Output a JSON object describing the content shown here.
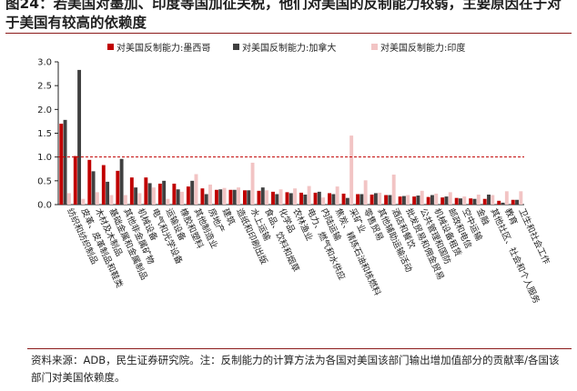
{
  "header": {
    "title": "图24：若美国对墨加、印度等国加征关税，他们对美国的反制能力较弱，主要原因在于对于美国有较高的依赖度"
  },
  "footer": {
    "source": "资料来源：ADB，民生证券研究院。注：反制能力的计算方法为各国对美国该部门输出增加值部分的贡献率/各国该部门对美国依赖度。"
  },
  "chart_data": {
    "type": "bar",
    "ylim": [
      0,
      3.0
    ],
    "yticks": [
      "0.0",
      "0.5",
      "1.0",
      "1.5",
      "2.0",
      "2.5",
      "3.0"
    ],
    "reference_line": {
      "y": 1.0,
      "color": "#c00000",
      "style": "dashed"
    },
    "grid": false,
    "legend_position": "top",
    "categories": [
      "纺织和纺织制品",
      "皮革、皮革制品和鞋类",
      "木材及木制品",
      "基础金属和金属制品",
      "其他非金属矿物",
      "机械设备",
      "电气和光学设备",
      "运输设备",
      "橡胶和塑料",
      "其他制造业",
      "房地产",
      "建筑",
      "造纸和印刷出版",
      "水上运输",
      "食品、饮料和烟草",
      "化学品",
      "农林渔业",
      "电力、燃气和水供应",
      "内陆运输",
      "焦炭、精炼石油和核燃料",
      "采矿业",
      "零售贸易",
      "其他辅助运输活动",
      "酒店和餐饮",
      "批发贸易和佣金贸易",
      "公共管理和国防",
      "机械设备租赁",
      "邮政和电信",
      "空中运输",
      "金融",
      "其他社区、社会和个人服务",
      "教育",
      "卫生和社会工作"
    ],
    "series": [
      {
        "name": "对美国反制能力:墨西哥",
        "color": "#c00000",
        "values": [
          1.7,
          1.02,
          0.94,
          0.83,
          0.71,
          0.57,
          0.57,
          0.44,
          0.44,
          0.38,
          0.34,
          0.31,
          0.31,
          0.3,
          0.29,
          0.27,
          0.26,
          0.25,
          0.25,
          0.24,
          0.23,
          0.22,
          0.21,
          0.2,
          0.17,
          0.17,
          0.16,
          0.15,
          0.14,
          0.13,
          0.12,
          0.08,
          0.1
        ]
      },
      {
        "name": "对美国反制能力:加拿大",
        "color": "#404040",
        "values": [
          1.78,
          2.83,
          0.7,
          0.48,
          0.96,
          0.36,
          0.45,
          0.5,
          0.32,
          0.5,
          0.22,
          0.32,
          0.31,
          0.3,
          0.36,
          0.22,
          0.24,
          0.21,
          0.27,
          0.22,
          0.14,
          0.22,
          0.24,
          0.2,
          0.18,
          0.19,
          0.2,
          0.17,
          0.13,
          0.12,
          0.21,
          0.04,
          0.1
        ]
      },
      {
        "name": "对美国反制能力:印度",
        "color": "#f2c4c4",
        "values": [
          0.24,
          0.12,
          0.26,
          0.2,
          0.2,
          0.24,
          0.36,
          0.12,
          0.27,
          0.64,
          0.42,
          0.35,
          0.36,
          0.88,
          0.3,
          0.32,
          0.34,
          0.39,
          0.15,
          0.38,
          1.45,
          0.51,
          0.25,
          0.63,
          0.2,
          0.29,
          0.23,
          0.26,
          0.17,
          0.21,
          0.2,
          0.28,
          0.28
        ]
      }
    ]
  }
}
